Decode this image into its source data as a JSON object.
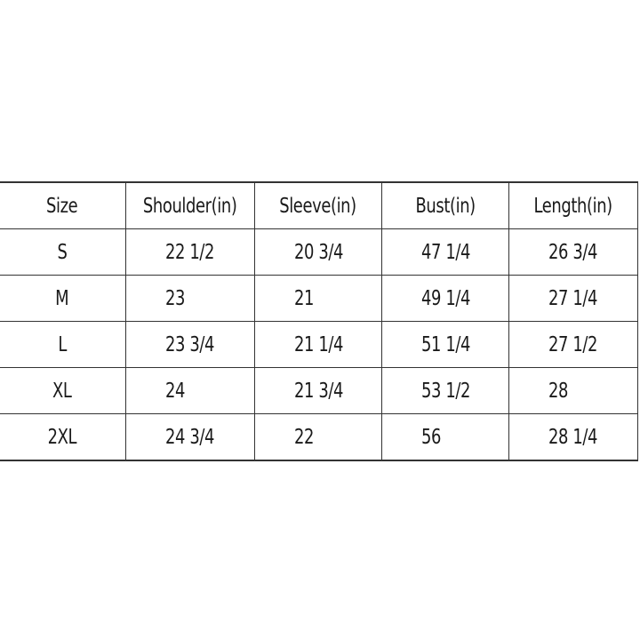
{
  "table": {
    "headers": [
      "Size",
      "Shoulder(in)",
      "Sleeve(in)",
      "Bust(in)",
      "Length(in)"
    ],
    "rows": [
      [
        "S",
        "22 1/2",
        "20 3/4",
        "47 1/4",
        "26 3/4"
      ],
      [
        "M",
        "23",
        "21",
        "49 1/4",
        "27 1/4"
      ],
      [
        "L",
        "23 3/4",
        "21 1/4",
        "51 1/4",
        "27 1/2"
      ],
      [
        "XL",
        "24",
        "21 3/4",
        "53 1/2",
        "28"
      ],
      [
        "2XL",
        "24 3/4",
        "22",
        "56",
        "28 1/4"
      ]
    ]
  }
}
